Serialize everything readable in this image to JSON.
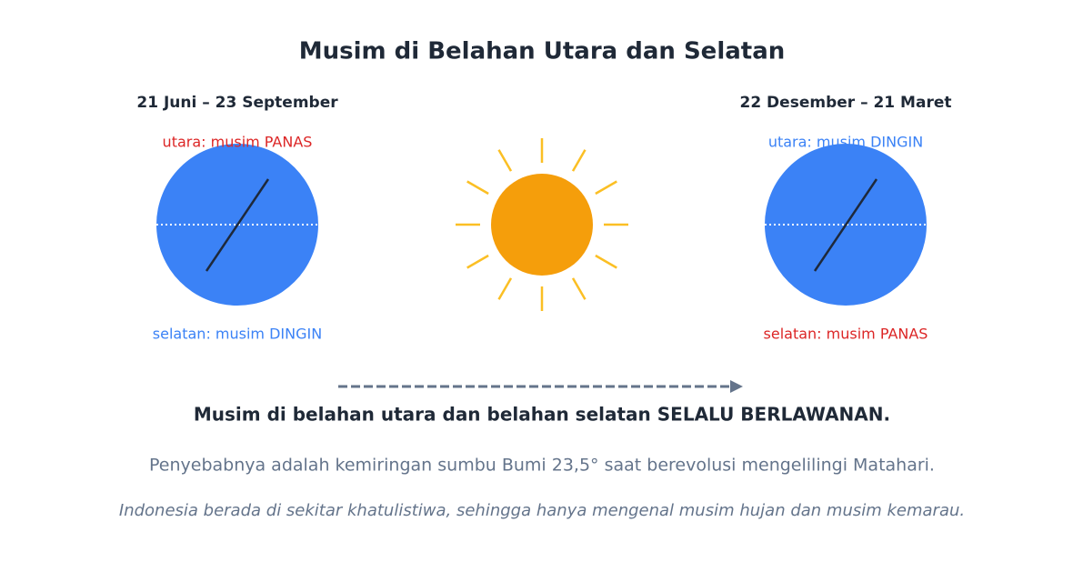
{
  "title": "Musim di Belahan Utara dan Selatan",
  "panels": [
    {
      "date": "21 Juni – 23 September",
      "north": "utara: musim PANAS",
      "south": "selatan: musim DINGIN"
    },
    {
      "date": "22 Desember – 21 Maret",
      "north": "utara: musim DINGIN",
      "south": "selatan: musim PANAS"
    }
  ],
  "summary": "Musim di belahan utara dan belahan selatan SELALU BERLAWANAN.",
  "explanation": "Penyebabnya adalah kemiringan sumbu Bumi 23,5° saat berevolusi mengelilingi Matahari.",
  "note": "Indonesia berada di sekitar khatulistiwa, sehingga hanya mengenal musim hujan dan musim kemarau."
}
